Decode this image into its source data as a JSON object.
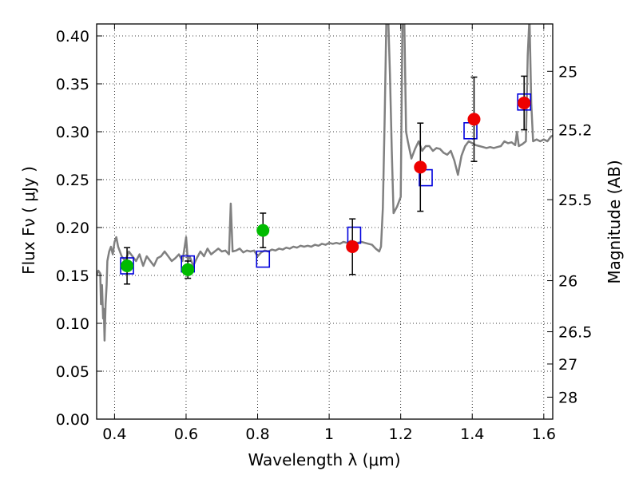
{
  "chart_data": {
    "type": "scatter",
    "xlabel": "Wavelength  λ (μm)",
    "ylabel": "Flux  Fν  ( μJy )",
    "y2label": "Magnitude (AB)",
    "xlim": [
      0.35,
      1.625
    ],
    "ylim": [
      0.0,
      0.4125
    ],
    "grid": true,
    "x_ticks": [
      {
        "v": 0.4,
        "label": "0.4"
      },
      {
        "v": 0.6,
        "label": "0.6"
      },
      {
        "v": 0.8,
        "label": "0.8"
      },
      {
        "v": 1.0,
        "label": "1"
      },
      {
        "v": 1.2,
        "label": "1.2"
      },
      {
        "v": 1.4,
        "label": "1.4"
      },
      {
        "v": 1.6,
        "label": "1.6"
      }
    ],
    "y_ticks": [
      {
        "v": 0.0,
        "label": "0.00"
      },
      {
        "v": 0.05,
        "label": "0.05"
      },
      {
        "v": 0.1,
        "label": "0.10"
      },
      {
        "v": 0.15,
        "label": "0.15"
      },
      {
        "v": 0.2,
        "label": "0.20"
      },
      {
        "v": 0.25,
        "label": "0.25"
      },
      {
        "v": 0.3,
        "label": "0.30"
      },
      {
        "v": 0.35,
        "label": "0.35"
      },
      {
        "v": 0.4,
        "label": "0.40"
      }
    ],
    "y2_ticks": [
      {
        "mag": 25,
        "label": "25"
      },
      {
        "mag": 25.2,
        "label": "25.2"
      },
      {
        "mag": 25.5,
        "label": "25.5"
      },
      {
        "mag": 26,
        "label": "26"
      },
      {
        "mag": 26.5,
        "label": "26.5"
      },
      {
        "mag": 27,
        "label": "27"
      },
      {
        "mag": 28,
        "label": "28"
      }
    ],
    "series": [
      {
        "kind": "line",
        "color": "#808080",
        "points": [
          [
            0.35,
            0.15
          ],
          [
            0.355,
            0.155
          ],
          [
            0.36,
            0.152
          ],
          [
            0.362,
            0.12
          ],
          [
            0.365,
            0.14
          ],
          [
            0.368,
            0.105
          ],
          [
            0.37,
            0.115
          ],
          [
            0.372,
            0.082
          ],
          [
            0.375,
            0.12
          ],
          [
            0.378,
            0.14
          ],
          [
            0.38,
            0.165
          ],
          [
            0.385,
            0.175
          ],
          [
            0.39,
            0.18
          ],
          [
            0.395,
            0.172
          ],
          [
            0.4,
            0.185
          ],
          [
            0.405,
            0.19
          ],
          [
            0.41,
            0.18
          ],
          [
            0.42,
            0.17
          ],
          [
            0.43,
            0.165
          ],
          [
            0.44,
            0.175
          ],
          [
            0.45,
            0.17
          ],
          [
            0.46,
            0.165
          ],
          [
            0.47,
            0.172
          ],
          [
            0.48,
            0.16
          ],
          [
            0.49,
            0.17
          ],
          [
            0.5,
            0.165
          ],
          [
            0.51,
            0.16
          ],
          [
            0.52,
            0.168
          ],
          [
            0.53,
            0.17
          ],
          [
            0.54,
            0.175
          ],
          [
            0.55,
            0.17
          ],
          [
            0.56,
            0.165
          ],
          [
            0.57,
            0.168
          ],
          [
            0.58,
            0.172
          ],
          [
            0.59,
            0.165
          ],
          [
            0.6,
            0.19
          ],
          [
            0.605,
            0.165
          ],
          [
            0.61,
            0.17
          ],
          [
            0.62,
            0.16
          ],
          [
            0.63,
            0.168
          ],
          [
            0.64,
            0.175
          ],
          [
            0.65,
            0.17
          ],
          [
            0.66,
            0.178
          ],
          [
            0.67,
            0.172
          ],
          [
            0.68,
            0.175
          ],
          [
            0.69,
            0.178
          ],
          [
            0.7,
            0.175
          ],
          [
            0.71,
            0.176
          ],
          [
            0.72,
            0.172
          ],
          [
            0.725,
            0.225
          ],
          [
            0.73,
            0.175
          ],
          [
            0.74,
            0.176
          ],
          [
            0.75,
            0.178
          ],
          [
            0.76,
            0.174
          ],
          [
            0.77,
            0.176
          ],
          [
            0.78,
            0.175
          ],
          [
            0.79,
            0.176
          ],
          [
            0.8,
            0.17
          ],
          [
            0.81,
            0.174
          ],
          [
            0.82,
            0.176
          ],
          [
            0.83,
            0.175
          ],
          [
            0.84,
            0.177
          ],
          [
            0.85,
            0.176
          ],
          [
            0.86,
            0.178
          ],
          [
            0.87,
            0.177
          ],
          [
            0.88,
            0.179
          ],
          [
            0.89,
            0.178
          ],
          [
            0.9,
            0.18
          ],
          [
            0.91,
            0.179
          ],
          [
            0.92,
            0.181
          ],
          [
            0.93,
            0.18
          ],
          [
            0.94,
            0.181
          ],
          [
            0.95,
            0.18
          ],
          [
            0.96,
            0.182
          ],
          [
            0.97,
            0.181
          ],
          [
            0.98,
            0.183
          ],
          [
            0.99,
            0.182
          ],
          [
            1.0,
            0.184
          ],
          [
            1.01,
            0.183
          ],
          [
            1.02,
            0.184
          ],
          [
            1.03,
            0.183
          ],
          [
            1.04,
            0.185
          ],
          [
            1.05,
            0.184
          ],
          [
            1.06,
            0.186
          ],
          [
            1.07,
            0.185
          ],
          [
            1.08,
            0.184
          ],
          [
            1.09,
            0.185
          ],
          [
            1.1,
            0.184
          ],
          [
            1.11,
            0.183
          ],
          [
            1.12,
            0.182
          ],
          [
            1.13,
            0.178
          ],
          [
            1.14,
            0.175
          ],
          [
            1.145,
            0.18
          ],
          [
            1.15,
            0.22
          ],
          [
            1.155,
            0.31
          ],
          [
            1.16,
            0.42
          ],
          [
            1.165,
            0.42
          ],
          [
            1.17,
            0.36
          ],
          [
            1.175,
            0.28
          ],
          [
            1.18,
            0.215
          ],
          [
            1.19,
            0.222
          ],
          [
            1.2,
            0.232
          ],
          [
            1.205,
            0.42
          ],
          [
            1.21,
            0.42
          ],
          [
            1.215,
            0.3
          ],
          [
            1.22,
            0.29
          ],
          [
            1.23,
            0.272
          ],
          [
            1.24,
            0.282
          ],
          [
            1.25,
            0.29
          ],
          [
            1.26,
            0.28
          ],
          [
            1.27,
            0.285
          ],
          [
            1.28,
            0.285
          ],
          [
            1.29,
            0.28
          ],
          [
            1.3,
            0.283
          ],
          [
            1.31,
            0.282
          ],
          [
            1.32,
            0.278
          ],
          [
            1.33,
            0.276
          ],
          [
            1.34,
            0.28
          ],
          [
            1.35,
            0.27
          ],
          [
            1.36,
            0.255
          ],
          [
            1.37,
            0.275
          ],
          [
            1.38,
            0.285
          ],
          [
            1.39,
            0.29
          ],
          [
            1.4,
            0.288
          ],
          [
            1.41,
            0.286
          ],
          [
            1.42,
            0.285
          ],
          [
            1.43,
            0.284
          ],
          [
            1.44,
            0.283
          ],
          [
            1.45,
            0.284
          ],
          [
            1.46,
            0.283
          ],
          [
            1.47,
            0.284
          ],
          [
            1.48,
            0.285
          ],
          [
            1.49,
            0.29
          ],
          [
            1.5,
            0.288
          ],
          [
            1.51,
            0.289
          ],
          [
            1.52,
            0.286
          ],
          [
            1.525,
            0.3
          ],
          [
            1.53,
            0.285
          ],
          [
            1.54,
            0.287
          ],
          [
            1.55,
            0.29
          ],
          [
            1.555,
            0.38
          ],
          [
            1.56,
            0.42
          ],
          [
            1.565,
            0.33
          ],
          [
            1.57,
            0.29
          ],
          [
            1.58,
            0.292
          ],
          [
            1.59,
            0.29
          ],
          [
            1.6,
            0.292
          ],
          [
            1.61,
            0.29
          ],
          [
            1.62,
            0.295
          ],
          [
            1.625,
            0.296
          ]
        ]
      },
      {
        "kind": "square",
        "color": "#0000dd",
        "points": [
          [
            0.435,
            0.16
          ],
          [
            0.605,
            0.162
          ],
          [
            0.815,
            0.167
          ],
          [
            1.07,
            0.192
          ],
          [
            1.27,
            0.252
          ],
          [
            1.395,
            0.301
          ],
          [
            1.545,
            0.331
          ]
        ]
      },
      {
        "kind": "circle",
        "color": "#00bb00",
        "points": [
          {
            "x": 0.435,
            "y": 0.16,
            "err": 0.019
          },
          {
            "x": 0.605,
            "y": 0.156,
            "err": 0.009
          },
          {
            "x": 0.815,
            "y": 0.197,
            "err": 0.018
          }
        ]
      },
      {
        "kind": "circle",
        "color": "#ee0000",
        "points": [
          {
            "x": 1.065,
            "y": 0.18,
            "err": 0.029
          },
          {
            "x": 1.255,
            "y": 0.263,
            "err": 0.046
          },
          {
            "x": 1.405,
            "y": 0.313,
            "err": 0.044
          },
          {
            "x": 1.545,
            "y": 0.33,
            "err": 0.028
          }
        ]
      }
    ]
  }
}
